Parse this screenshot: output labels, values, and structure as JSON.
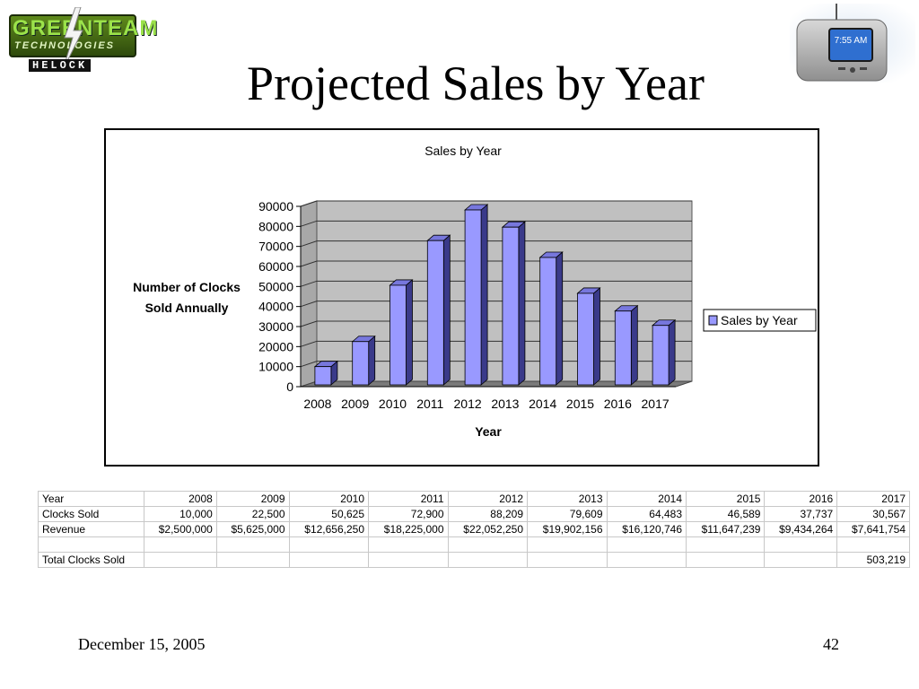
{
  "logo": {
    "line1": "GREENTEAM",
    "line2": "TECHNOLOGIES",
    "line3": "HELOCK"
  },
  "device": {
    "time": "7:55 AM"
  },
  "slide": {
    "title": "Projected Sales by Year"
  },
  "chart_data": {
    "type": "bar",
    "title": "Sales by Year",
    "xlabel": "Year",
    "ylabel_lines": [
      "Number of Clocks",
      "Sold Annually"
    ],
    "categories": [
      "2008",
      "2009",
      "2010",
      "2011",
      "2012",
      "2013",
      "2014",
      "2015",
      "2016",
      "2017"
    ],
    "series": [
      {
        "name": "Sales by Year",
        "values": [
          10000,
          22500,
          50625,
          72900,
          88209,
          79609,
          64483,
          46589,
          37737,
          30567
        ]
      }
    ],
    "ylim": [
      0,
      90000
    ],
    "yticks": [
      "0",
      "10000",
      "20000",
      "30000",
      "40000",
      "50000",
      "60000",
      "70000",
      "80000",
      "90000"
    ],
    "grid": true,
    "legend": "right",
    "style": "3d",
    "colors": {
      "bar_front": "#9999ff",
      "bar_top": "#7777dd",
      "bar_side": "#3a3a8a",
      "wall": "#c0c0c0",
      "floor": "#7a7a7a"
    }
  },
  "table": {
    "rows": [
      [
        "Year",
        "2008",
        "2009",
        "2010",
        "2011",
        "2012",
        "2013",
        "2014",
        "2015",
        "2016",
        "2017"
      ],
      [
        "Clocks Sold",
        "10,000",
        "22,500",
        "50,625",
        "72,900",
        "88,209",
        "79,609",
        "64,483",
        "46,589",
        "37,737",
        "30,567"
      ],
      [
        "Revenue",
        "$2,500,000",
        "$5,625,000",
        "$12,656,250",
        "$18,225,000",
        "$22,052,250",
        "$19,902,156",
        "$16,120,746",
        "$11,647,239",
        "$9,434,264",
        "$7,641,754"
      ],
      [
        "",
        "",
        "",
        "",
        "",
        "",
        "",
        "",
        "",
        "",
        ""
      ]
    ],
    "total_label": "Total Clocks Sold",
    "total_value": "503,219"
  },
  "footer": {
    "date": "December 15, 2005",
    "page": "42"
  }
}
